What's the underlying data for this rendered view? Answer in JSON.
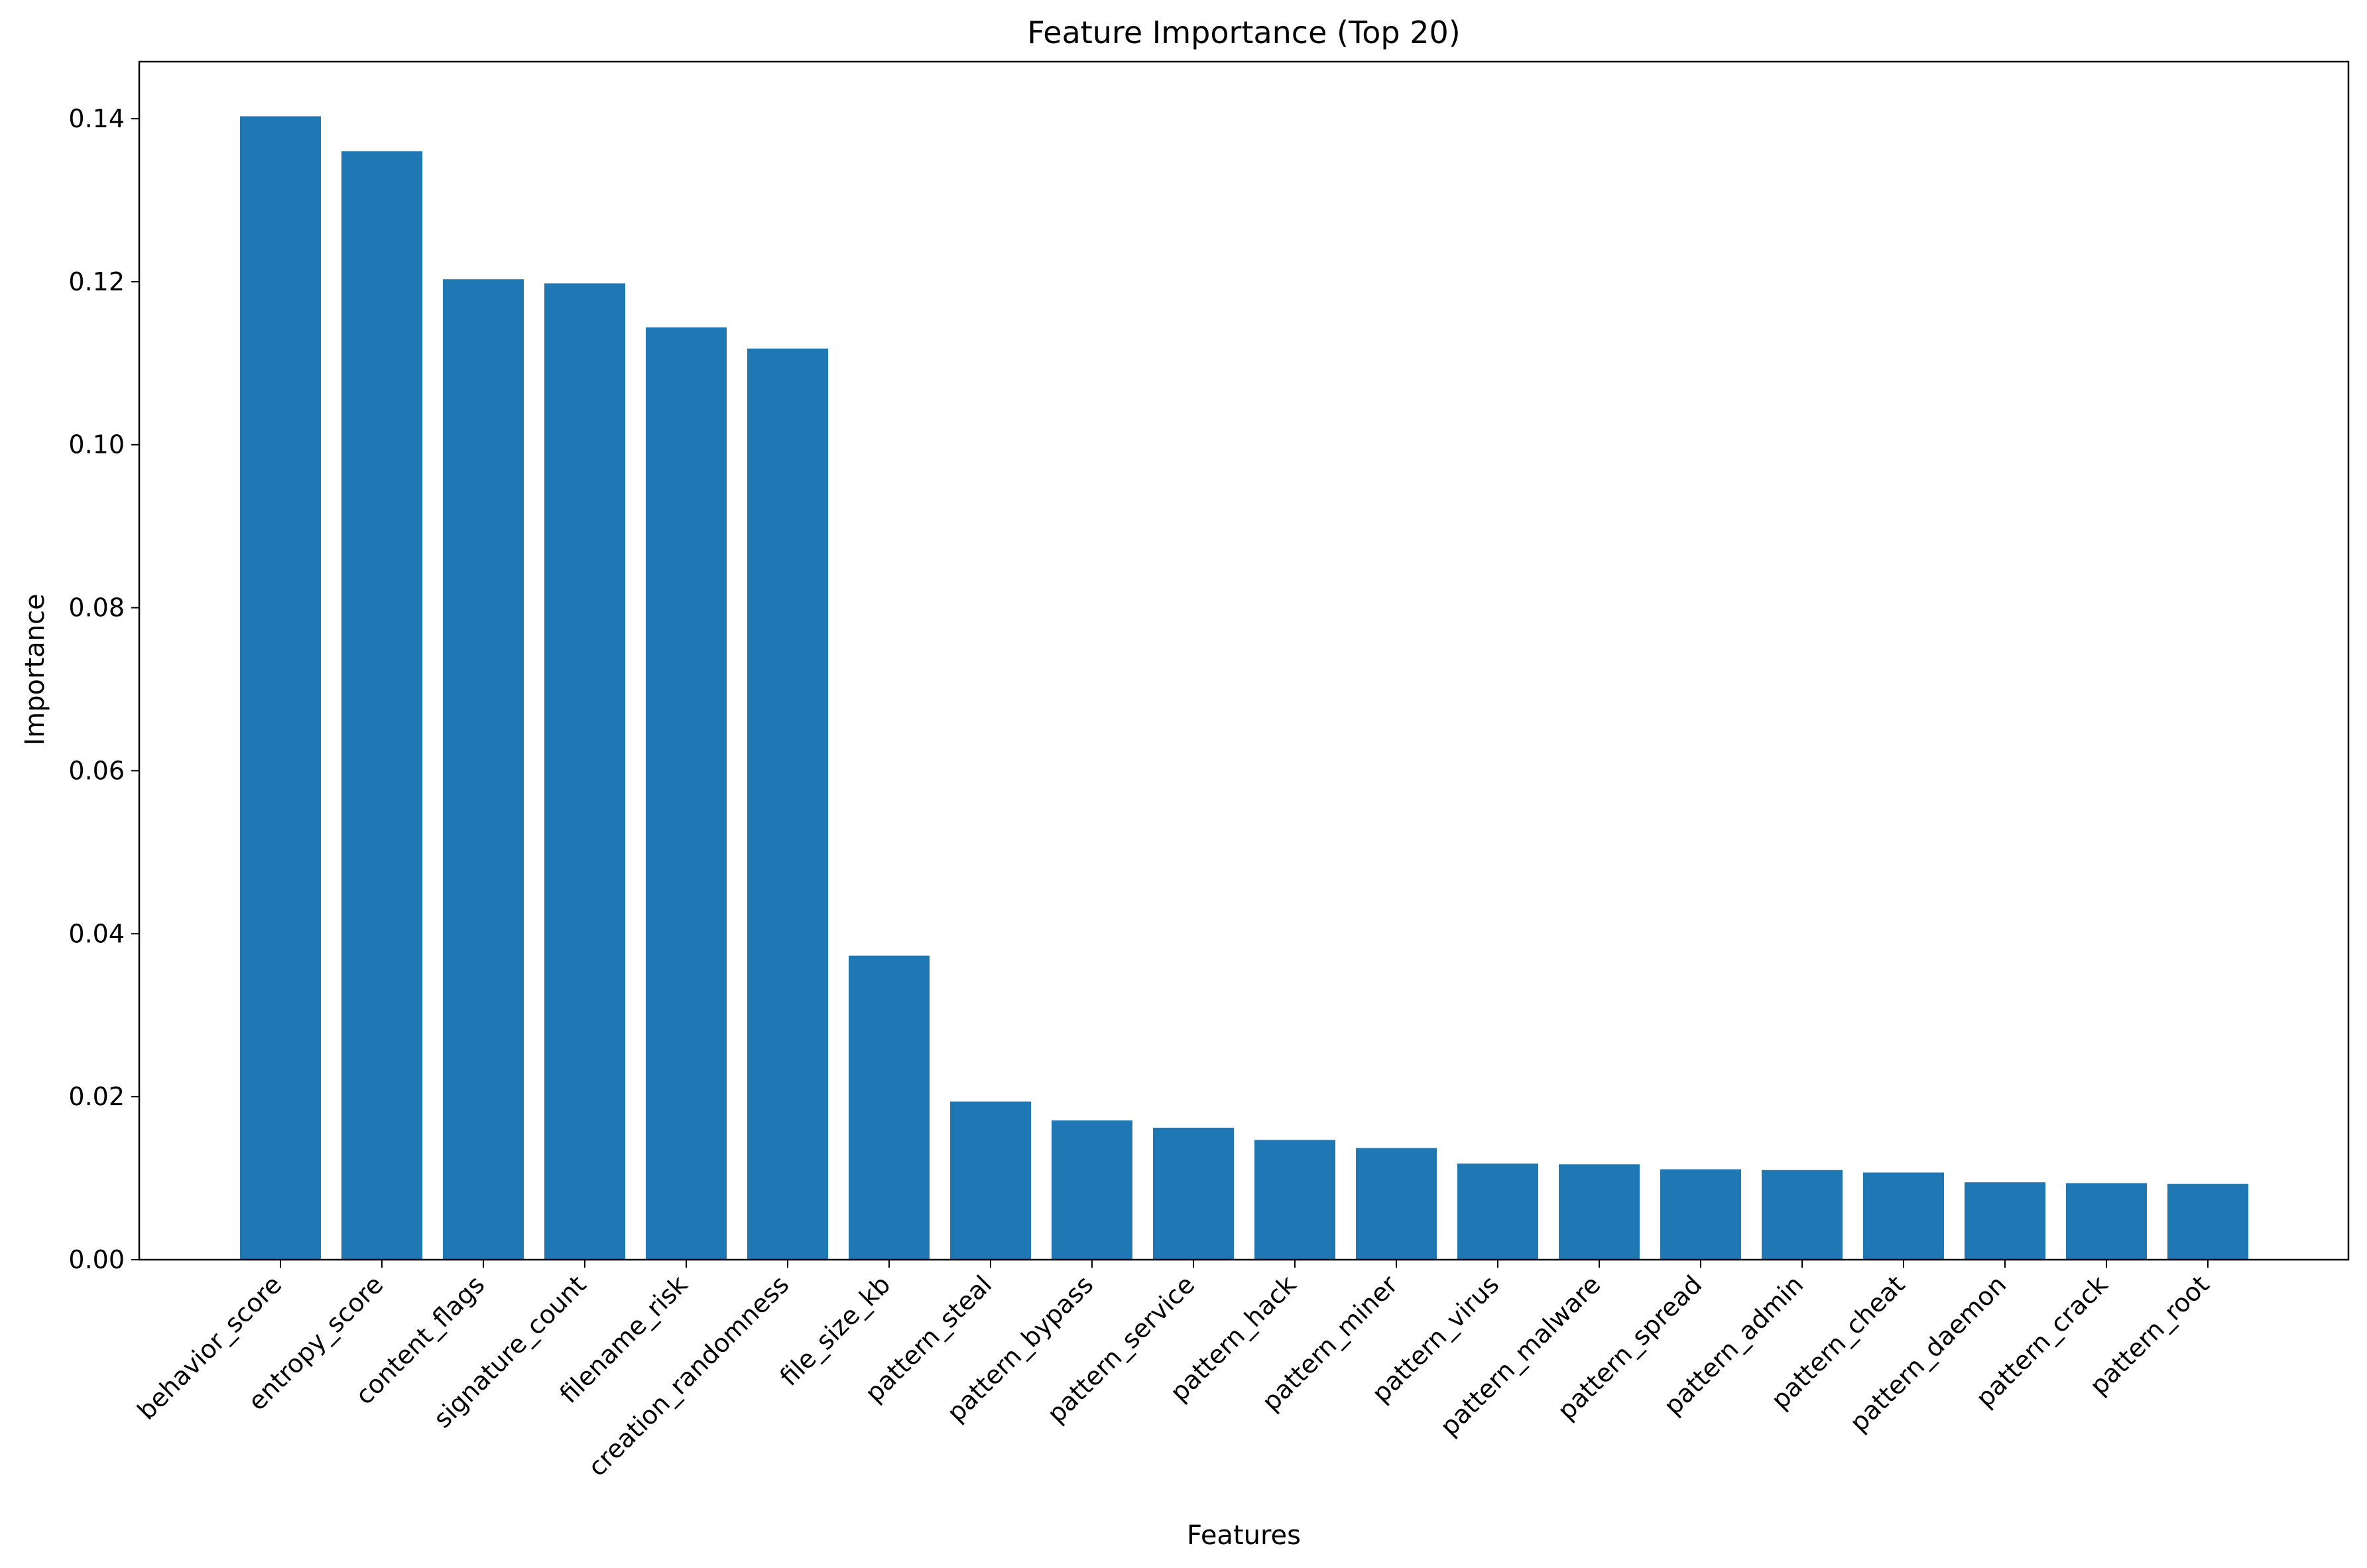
{
  "chart_data": {
    "type": "bar",
    "title": "Feature Importance (Top 20)",
    "xlabel": "Features",
    "ylabel": "Importance",
    "ylim": [
      0,
      0.147
    ],
    "yticks": [
      "0.00",
      "0.02",
      "0.04",
      "0.06",
      "0.08",
      "0.10",
      "0.12",
      "0.14"
    ],
    "ytick_values": [
      0,
      0.02,
      0.04,
      0.06,
      0.08,
      0.1,
      0.12,
      0.14
    ],
    "grid": false,
    "bar_color": "#1f77b4",
    "categories": [
      "behavior_score",
      "entropy_score",
      "content_flags",
      "signature_count",
      "filename_risk",
      "creation_randomness",
      "file_size_kb",
      "pattern_steal",
      "pattern_bypass",
      "pattern_service",
      "pattern_hack",
      "pattern_miner",
      "pattern_virus",
      "pattern_malware",
      "pattern_spread",
      "pattern_admin",
      "pattern_cheat",
      "pattern_daemon",
      "pattern_crack",
      "pattern_root"
    ],
    "values": [
      0.1403,
      0.136,
      0.1203,
      0.1198,
      0.1144,
      0.1118,
      0.0373,
      0.0194,
      0.0171,
      0.0162,
      0.0147,
      0.0137,
      0.0118,
      0.0117,
      0.0111,
      0.011,
      0.0107,
      0.0095,
      0.0094,
      0.0093
    ]
  }
}
